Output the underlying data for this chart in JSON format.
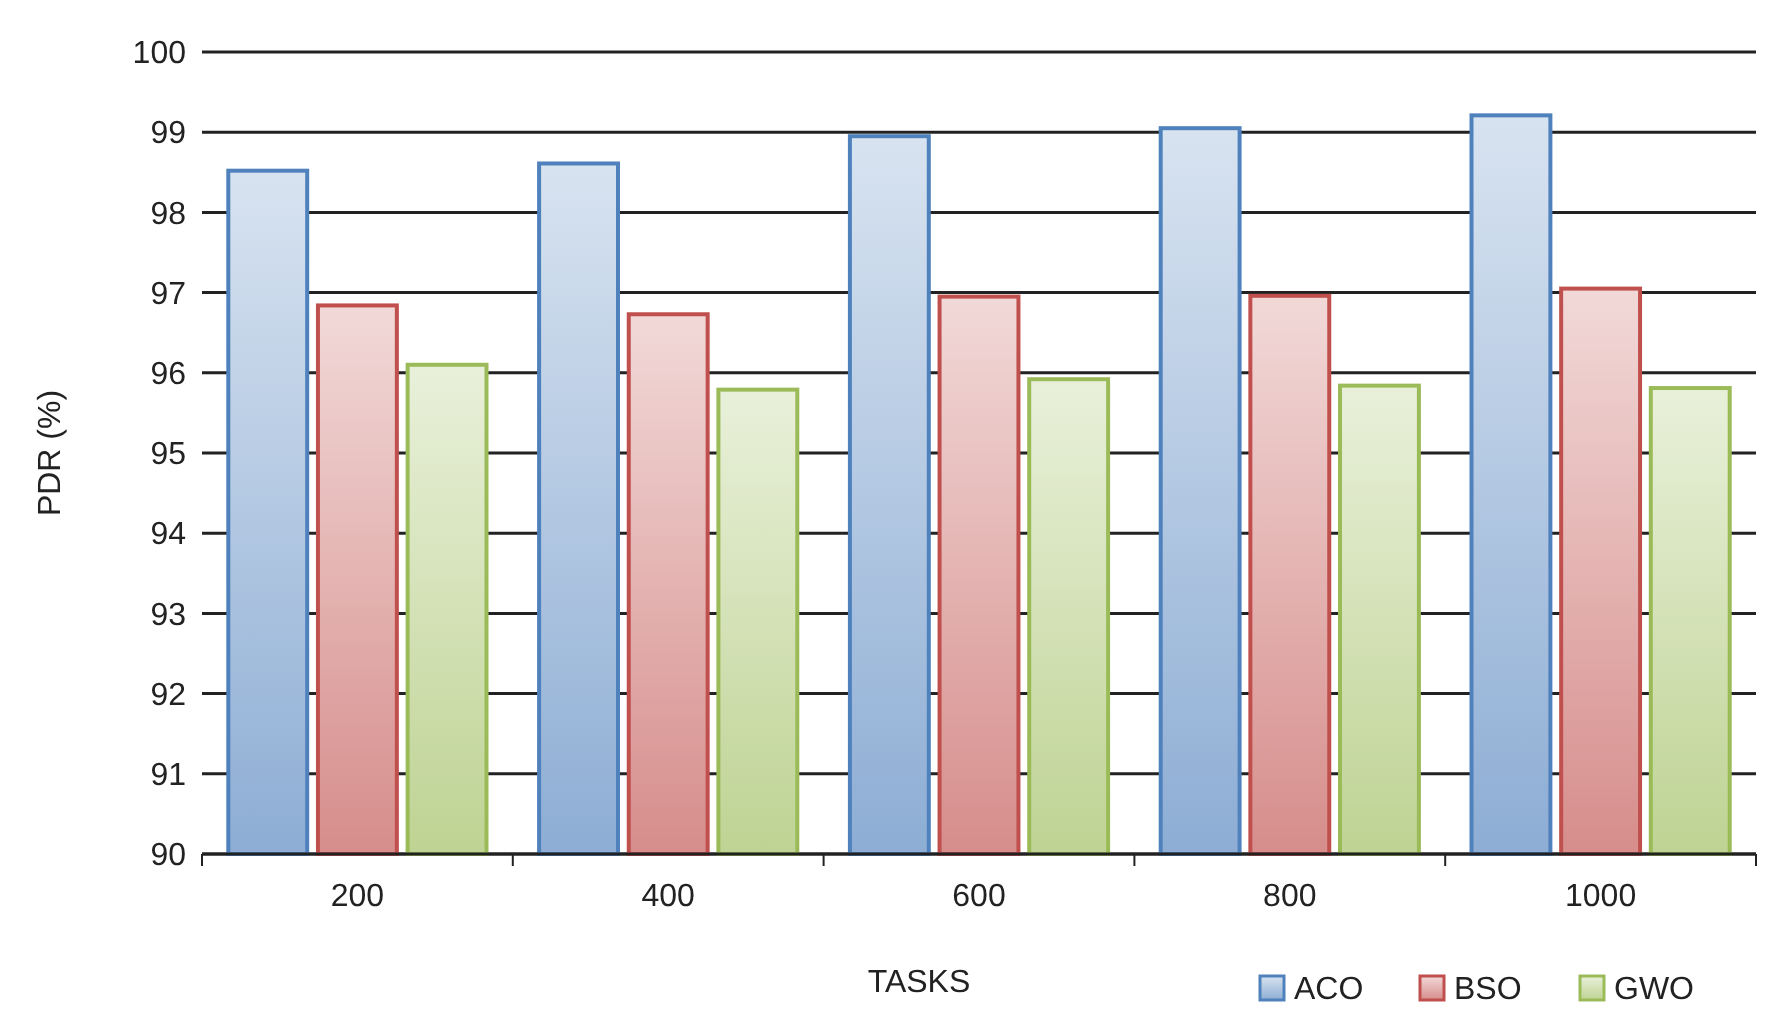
{
  "chart_data": {
    "type": "bar",
    "xlabel": "TASKS",
    "ylabel": "PDR (%)",
    "categories": [
      "200",
      "400",
      "600",
      "800",
      "1000"
    ],
    "series": [
      {
        "name": "ACO",
        "color": "#4f81bd",
        "values": [
          98.52,
          98.61,
          98.95,
          99.05,
          99.21
        ]
      },
      {
        "name": "BSO",
        "color": "#c0504d",
        "values": [
          96.84,
          96.73,
          96.95,
          96.96,
          97.05
        ]
      },
      {
        "name": "GWO",
        "color": "#9bbb59",
        "values": [
          96.1,
          95.79,
          95.92,
          95.84,
          95.81
        ]
      }
    ],
    "ylim": [
      90,
      100
    ],
    "yticks": [
      90,
      91,
      92,
      93,
      94,
      95,
      96,
      97,
      98,
      99,
      100
    ],
    "grid": "y",
    "legend": "bottom right"
  }
}
